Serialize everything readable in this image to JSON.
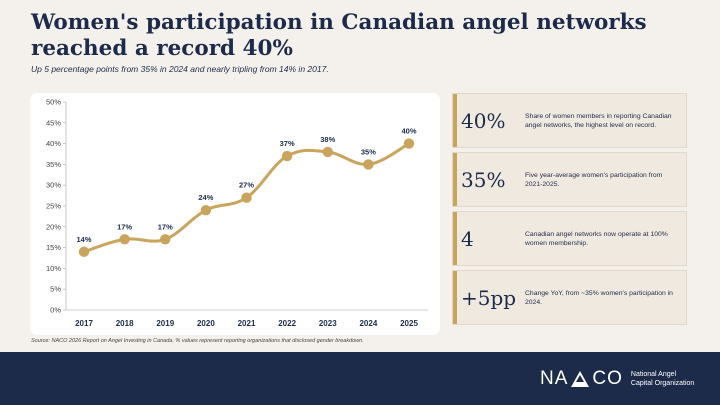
{
  "header": {
    "title": "Women's participation in Canadian angel networks reached a record 40%",
    "subtitle": "Up 5 percentage points from 35% in 2024 and nearly tripling from 14% in 2017."
  },
  "chart_data": {
    "type": "line",
    "x": [
      "2017",
      "2018",
      "2019",
      "2020",
      "2021",
      "2022",
      "2023",
      "2024",
      "2025"
    ],
    "series": [
      {
        "values": [
          14,
          17,
          17,
          24,
          27,
          37,
          38,
          35,
          40
        ]
      }
    ],
    "data_labels": [
      "14%",
      "17%",
      "17%",
      "24%",
      "27%",
      "37%",
      "38%",
      "35%",
      "40%"
    ],
    "yticks": [
      "0%",
      "5%",
      "10%",
      "15%",
      "20%",
      "25%",
      "30%",
      "35%",
      "40%",
      "45%",
      "50%"
    ],
    "ylim": [
      0,
      50
    ],
    "grid": false,
    "color": "#c9a45c",
    "smooth": true
  },
  "stats": [
    {
      "value": "40%",
      "text": "Share of women members in reporting Canadian angel networks, the highest level on record."
    },
    {
      "value": "35%",
      "text": "Five year-average women's participation from 2021-2025."
    },
    {
      "value": "4",
      "text": "Canadian angel networks now operate at 100% women membership."
    },
    {
      "value": "+5pp",
      "text": "Change YoY, from ~35% women's participation in 2024."
    }
  ],
  "source": "Source: NACO 2026 Report on Angel Investing in Canada. % values represent reporting organizations that disclosed gender breakdown.",
  "footer": {
    "logo_left": "NA",
    "logo_right": "CO",
    "org_line1": "National Angel",
    "org_line2": "Capital Organization"
  },
  "colors": {
    "navy": "#1c2b4a",
    "gold": "#c9a45c",
    "background": "#f4f1ec"
  }
}
